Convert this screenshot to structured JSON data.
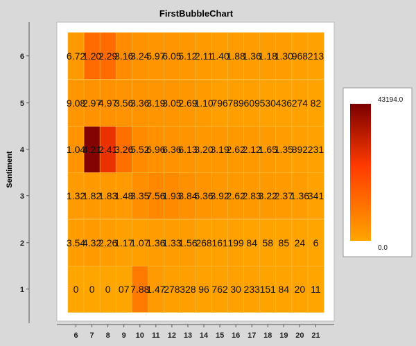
{
  "chart_data": {
    "type": "heatmap",
    "title": "FirstBubbleChart",
    "xlabel": "",
    "ylabel": "Sentiment",
    "x": [
      6,
      7,
      8,
      9,
      10,
      11,
      12,
      13,
      14,
      15,
      16,
      17,
      18,
      19,
      20,
      21
    ],
    "y": [
      1,
      2,
      3,
      4,
      5,
      6
    ],
    "cell_labels": {
      "6": [
        "6.72",
        "1.20",
        "2.29",
        "3.16",
        "3.24",
        "5.97",
        "6.05",
        "5.12",
        "2.11",
        "1.40",
        "1.88",
        "1.36",
        "1.18",
        "1.30",
        "968",
        "213"
      ],
      "5": [
        "9.08",
        "2.97",
        "4.97",
        "3.56",
        "3.36",
        "3.19",
        "3.05",
        "2.69",
        "1.10",
        "796",
        "789",
        "609",
        "530",
        "436",
        "274",
        "82"
      ],
      "4": [
        "1.04",
        "4.21",
        "2.41",
        "3.26",
        "5.52",
        "6.96",
        "6.36",
        "6.13",
        "3.20",
        "3.19",
        "2.62",
        "2.12",
        "1.65",
        "1.35",
        "892",
        "231"
      ],
      "3": [
        "1.32",
        "1.82",
        "1.83",
        "1.48",
        "3.35",
        "7.56",
        "1.93",
        "3.84",
        "6.36",
        "3.92",
        "2.62",
        "2.83",
        "3.22",
        "2.37",
        "1.36",
        "341"
      ],
      "2": [
        "3.54",
        "4.32",
        "2.26",
        "1.17",
        "1.07",
        "1.36",
        "1.33",
        "1.56",
        "268",
        "161",
        "199",
        "84",
        "58",
        "85",
        "24",
        "6"
      ],
      "1": [
        "0",
        "0",
        "0",
        "07",
        "7.88",
        "1.47",
        "278",
        "328",
        "96",
        "762",
        "30",
        "233",
        "151",
        "84",
        "20",
        "11"
      ]
    },
    "intensity": {
      "6": [
        0.06,
        0.3,
        0.3,
        0.13,
        0.1,
        0.08,
        0.08,
        0.07,
        0.05,
        0.04,
        0.04,
        0.04,
        0.04,
        0.04,
        0.03,
        0.02
      ],
      "5": [
        0.08,
        0.1,
        0.1,
        0.09,
        0.09,
        0.08,
        0.08,
        0.07,
        0.05,
        0.03,
        0.03,
        0.03,
        0.02,
        0.02,
        0.02,
        0.01
      ],
      "4": [
        0.09,
        0.97,
        0.62,
        0.28,
        0.14,
        0.11,
        0.1,
        0.09,
        0.07,
        0.07,
        0.06,
        0.06,
        0.05,
        0.04,
        0.03,
        0.02
      ],
      "3": [
        0.05,
        0.06,
        0.06,
        0.05,
        0.12,
        0.15,
        0.14,
        0.11,
        0.09,
        0.07,
        0.06,
        0.06,
        0.06,
        0.05,
        0.04,
        0.02
      ],
      "2": [
        0.04,
        0.05,
        0.04,
        0.03,
        0.03,
        0.04,
        0.04,
        0.04,
        0.02,
        0.02,
        0.02,
        0.01,
        0.01,
        0.01,
        0.01,
        0.0
      ],
      "1": [
        0.0,
        0.0,
        0.0,
        0.0,
        0.22,
        0.05,
        0.03,
        0.03,
        0.02,
        0.02,
        0.02,
        0.02,
        0.01,
        0.01,
        0.01,
        0.0
      ]
    },
    "colorscale": {
      "min_label": "0.0",
      "max_label": "43194.0",
      "min_color": "#ffa500",
      "mid_color": "#ff3a00",
      "max_color": "#7a0000"
    },
    "colors": {
      "plot_background": "#ffffff",
      "cell_gridline": "#f8c14a",
      "page_background": "#d9d9d9"
    },
    "legend": "right",
    "grid": true
  }
}
